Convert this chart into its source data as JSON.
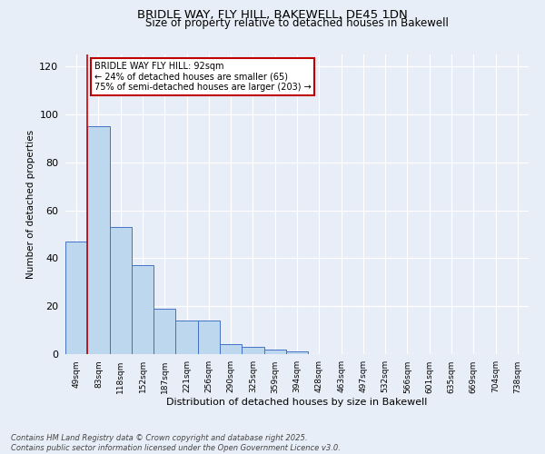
{
  "title1": "BRIDLE WAY, FLY HILL, BAKEWELL, DE45 1DN",
  "title2": "Size of property relative to detached houses in Bakewell",
  "xlabel": "Distribution of detached houses by size in Bakewell",
  "ylabel": "Number of detached properties",
  "bar_values": [
    47,
    95,
    53,
    37,
    19,
    14,
    14,
    4,
    3,
    2,
    1,
    0,
    0,
    0,
    0,
    0,
    0,
    0,
    0,
    0,
    0
  ],
  "bar_labels": [
    "49sqm",
    "83sqm",
    "118sqm",
    "152sqm",
    "187sqm",
    "221sqm",
    "256sqm",
    "290sqm",
    "325sqm",
    "359sqm",
    "394sqm",
    "428sqm",
    "463sqm",
    "497sqm",
    "532sqm",
    "566sqm",
    "601sqm",
    "635sqm",
    "669sqm",
    "704sqm",
    "738sqm"
  ],
  "bar_color": "#bdd7ee",
  "bar_edge_color": "#4472c4",
  "ylim": [
    0,
    125
  ],
  "yticks": [
    0,
    20,
    40,
    60,
    80,
    100,
    120
  ],
  "property_line_x": 1.0,
  "annotation_text": "BRIDLE WAY FLY HILL: 92sqm\n← 24% of detached houses are smaller (65)\n75% of semi-detached houses are larger (203) →",
  "annotation_box_color": "#ffffff",
  "annotation_box_edge": "#c00000",
  "footer": "Contains HM Land Registry data © Crown copyright and database right 2025.\nContains public sector information licensed under the Open Government Licence v3.0.",
  "background_color": "#e8eef7",
  "grid_color": "#ffffff"
}
